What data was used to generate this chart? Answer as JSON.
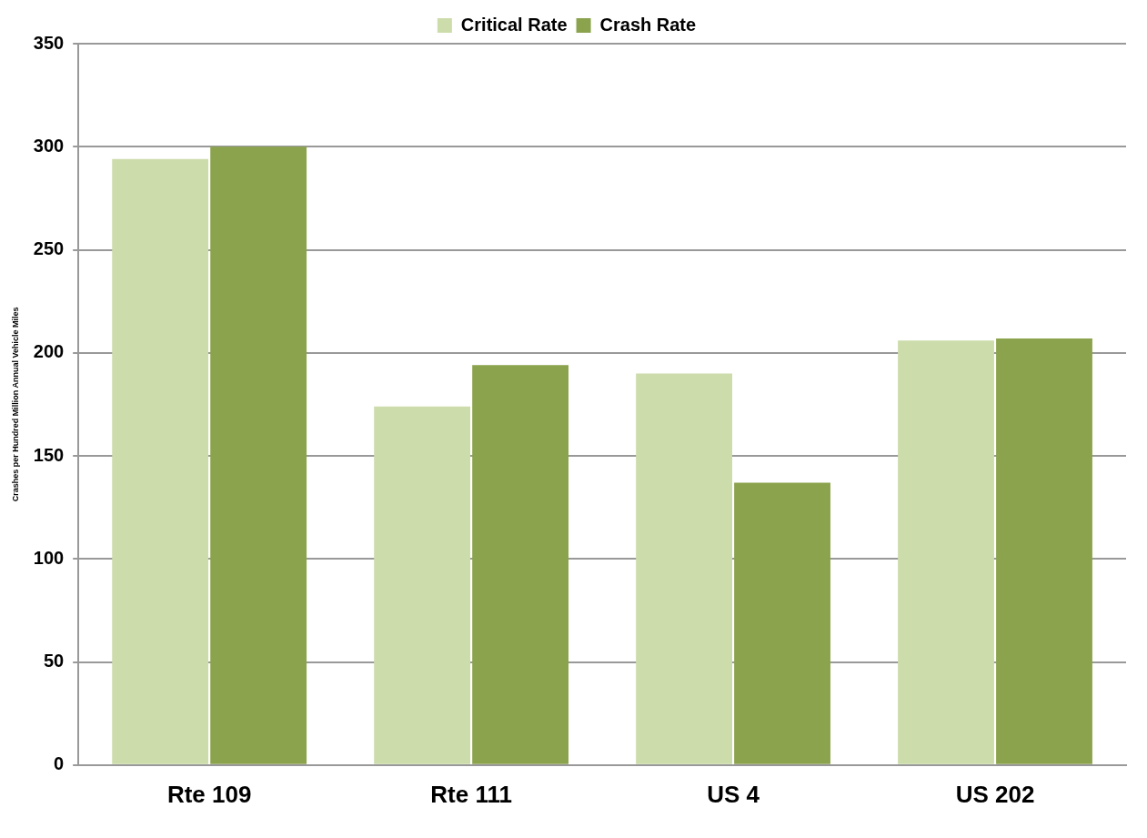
{
  "chart_data": {
    "type": "bar",
    "ylabel": "Crashes per Hundred Million Annual Vehicle Miles",
    "categories": [
      "Rte 109",
      "Rte 111",
      "US 4",
      "US 202"
    ],
    "series": [
      {
        "name": "Critical Rate",
        "color": "#cddcab",
        "values": [
          294,
          174,
          190,
          206
        ]
      },
      {
        "name": "Crash Rate",
        "color": "#8ba34d",
        "values": [
          300,
          194,
          137,
          207
        ]
      }
    ],
    "ylim": [
      0,
      350
    ],
    "yticks": [
      0,
      50,
      100,
      150,
      200,
      250,
      300,
      350
    ],
    "grid": "y",
    "legend": "top"
  }
}
